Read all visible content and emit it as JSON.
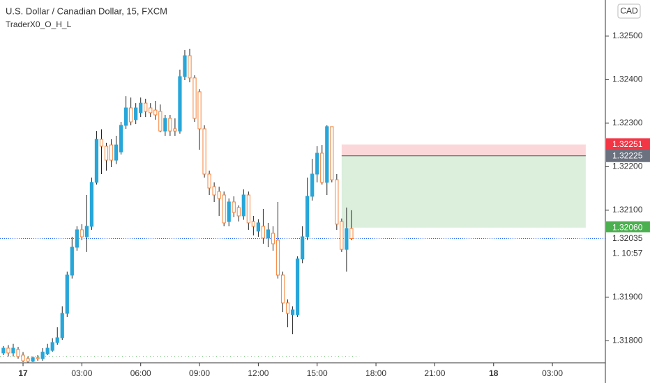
{
  "chart_data": {
    "type": "candlestick",
    "title": "U.S. Dollar / Canadian Dollar, 15, FXCM",
    "subtitle": "TraderX0_O_H_L",
    "currency_button": "CAD",
    "up_color": "#26a6d9",
    "down_color": "#f7843a",
    "x": [
      -4,
      -3,
      -2,
      -1,
      0,
      1,
      2,
      3,
      4,
      5,
      6,
      7,
      8,
      9,
      10,
      11,
      12,
      13,
      14,
      15,
      16,
      17,
      18,
      19,
      20,
      21,
      22,
      23,
      24,
      25,
      26,
      27,
      28,
      29,
      30,
      31,
      32,
      33,
      34,
      35,
      36,
      37,
      38,
      39,
      40,
      41,
      42,
      43,
      44,
      45,
      46,
      47,
      48,
      49,
      50,
      51,
      52,
      53,
      54,
      55,
      56,
      57,
      58,
      59,
      60,
      61,
      62,
      63,
      64,
      65,
      66,
      67
    ],
    "open": [
      1.31772,
      1.31783,
      1.31772,
      1.3178,
      1.31767,
      1.31759,
      1.31753,
      1.31761,
      1.31759,
      1.3177,
      1.31778,
      1.31796,
      1.31807,
      1.31863,
      1.31951,
      1.32015,
      1.32055,
      1.32039,
      1.32063,
      1.32164,
      1.32263,
      1.32247,
      1.3225,
      1.32215,
      1.32234,
      1.32295,
      1.32335,
      1.32308,
      1.32324,
      1.32346,
      1.32335,
      1.3233,
      1.32327,
      1.32282,
      1.32311,
      1.32287,
      1.32282,
      1.32407,
      1.32455,
      1.32404,
      1.32372,
      1.32287,
      1.32183,
      1.32154,
      1.32143,
      1.32135,
      1.32074,
      1.32119,
      1.32106,
      1.32087,
      1.32135,
      1.32074,
      1.32052,
      1.32063,
      1.32036,
      1.32047,
      1.32031,
      1.31951,
      1.31887,
      1.3186,
      1.3186,
      1.31988,
      1.32039,
      1.32132,
      1.32183,
      1.32231,
      1.32164,
      1.32292,
      1.3217,
      1.32074,
      1.3201,
      1.32058
    ],
    "high": [
      1.31788,
      1.3179,
      1.31793,
      1.31786,
      1.31774,
      1.31764,
      1.31764,
      1.31767,
      1.31783,
      1.31793,
      1.31806,
      1.31831,
      1.31879,
      1.31959,
      1.32039,
      1.32063,
      1.32068,
      1.32135,
      1.32175,
      1.32282,
      1.32286,
      1.32255,
      1.32263,
      1.32271,
      1.32303,
      1.32362,
      1.32359,
      1.32346,
      1.32359,
      1.32356,
      1.32346,
      1.32351,
      1.32343,
      1.32319,
      1.32319,
      1.32311,
      1.32423,
      1.32468,
      1.32471,
      1.3241,
      1.32378,
      1.32295,
      1.32191,
      1.32164,
      1.32154,
      1.32143,
      1.32127,
      1.32132,
      1.32111,
      1.32148,
      1.32143,
      1.32087,
      1.32079,
      1.32103,
      1.32071,
      1.32063,
      1.32119,
      1.31959,
      1.31895,
      1.31879,
      1.31994,
      1.32063,
      1.32175,
      1.32218,
      1.32247,
      1.3225,
      1.32295,
      1.32292,
      1.32183,
      1.32081,
      1.32106,
      1.321
    ],
    "low": [
      1.31767,
      1.31764,
      1.31764,
      1.31759,
      1.31751,
      1.3175,
      1.31751,
      1.31754,
      1.31754,
      1.31767,
      1.31775,
      1.31791,
      1.31802,
      1.31855,
      1.31943,
      1.32007,
      1.32031,
      1.32004,
      1.32055,
      1.32159,
      1.32183,
      1.32191,
      1.32199,
      1.32206,
      1.32228,
      1.32287,
      1.32295,
      1.32298,
      1.32314,
      1.32314,
      1.32314,
      1.32308,
      1.32279,
      1.32271,
      1.32271,
      1.32271,
      1.32276,
      1.32399,
      1.32394,
      1.32303,
      1.32239,
      1.32175,
      1.32135,
      1.32119,
      1.32087,
      1.32063,
      1.32063,
      1.32084,
      1.32074,
      1.32078,
      1.32055,
      1.32042,
      1.32039,
      1.32023,
      1.32015,
      1.32007,
      1.31943,
      1.31866,
      1.31831,
      1.31815,
      1.31855,
      1.31978,
      1.32031,
      1.32122,
      1.32164,
      1.32159,
      1.32135,
      1.32164,
      1.32055,
      1.32004,
      1.31959,
      1.32031
    ],
    "close": [
      1.31783,
      1.31772,
      1.31783,
      1.31764,
      1.31754,
      1.31753,
      1.31761,
      1.31759,
      1.31774,
      1.31783,
      1.31796,
      1.31807,
      1.31863,
      1.31951,
      1.32015,
      1.32055,
      1.32039,
      1.32063,
      1.32164,
      1.32263,
      1.32247,
      1.32215,
      1.32215,
      1.3225,
      1.32295,
      1.32335,
      1.32303,
      1.32335,
      1.32346,
      1.32327,
      1.32324,
      1.32319,
      1.32282,
      1.32311,
      1.32282,
      1.32282,
      1.32407,
      1.32455,
      1.32404,
      1.32311,
      1.32287,
      1.32183,
      1.32151,
      1.32135,
      1.32127,
      1.32071,
      1.32119,
      1.32095,
      1.32087,
      1.32135,
      1.32071,
      1.32063,
      1.32071,
      1.32036,
      1.32055,
      1.32023,
      1.31951,
      1.31887,
      1.31863,
      1.31871,
      1.31988,
      1.32039,
      1.32132,
      1.32183,
      1.32231,
      1.32164,
      1.32292,
      1.3217,
      1.32068,
      1.3201,
      1.32058,
      1.32035
    ],
    "xlim": [
      -4.7,
      118.8
    ],
    "xticks": [
      {
        "value": 0,
        "label": "17"
      },
      {
        "value": 12,
        "label": "03:00"
      },
      {
        "value": 24,
        "label": "06:00"
      },
      {
        "value": 36,
        "label": "09:00"
      },
      {
        "value": 48,
        "label": "12:00"
      },
      {
        "value": 60,
        "label": "15:00"
      },
      {
        "value": 72,
        "label": "18:00"
      },
      {
        "value": 84,
        "label": "21:00"
      },
      {
        "value": 96,
        "label": "18"
      },
      {
        "value": 108,
        "label": "03:00"
      }
    ],
    "ylim": [
      1.31751,
      1.32583
    ],
    "yticks": [
      {
        "value": 1.325,
        "label": "1.32500"
      },
      {
        "value": 1.324,
        "label": "1.32400"
      },
      {
        "value": 1.323,
        "label": "1.32300"
      },
      {
        "value": 1.322,
        "label": "1.32200"
      },
      {
        "value": 1.321,
        "label": "1.32100"
      },
      {
        "value": 1.319,
        "label": "1.31900"
      },
      {
        "value": 1.318,
        "label": "1.31800"
      }
    ],
    "position": {
      "stop": {
        "value": 1.32251,
        "label": "1.32251",
        "color": "#f23645"
      },
      "entry": {
        "value": 1.32225,
        "label": "1.32225",
        "color": "#6b717e"
      },
      "target": {
        "value": 1.3206,
        "label": "1.32060",
        "color": "#4caf50"
      },
      "x_start": 65,
      "x_end": 114.8
    },
    "last_price": {
      "value": 1.32035,
      "label": "1.32035",
      "color": "#2962ff"
    },
    "countdown": "1. 10:57",
    "level_line": {
      "value": 1.31764,
      "x_end": 68.6,
      "color": "#4caf50"
    }
  }
}
